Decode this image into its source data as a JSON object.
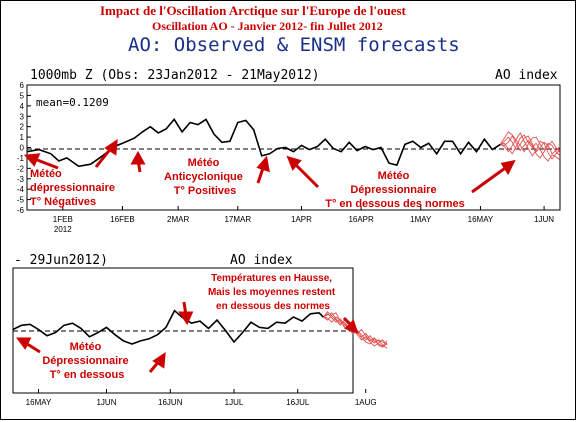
{
  "titles": {
    "line1": "Impact de l'Oscillation Arctique sur l'Europe de l'ouest",
    "line2": "Oscillation AO - Janvier 2012- fin Jullet 2012",
    "line3": "AO: Observed & ENSM forecasts"
  },
  "chart_data": [
    {
      "type": "line",
      "header_left": "1000mb Z (Obs: 23Jan2012 - 21May2012)",
      "header_right": "AO index",
      "mean_label": "mean=0.1209",
      "ylim": [
        -6,
        6
      ],
      "yticks": [
        6,
        5,
        4,
        3,
        2,
        1,
        0,
        -1,
        -2,
        -3,
        -4,
        -5,
        -6
      ],
      "xlim": [
        0,
        134
      ],
      "xticks": [
        {
          "x": 9,
          "label": "1FEB",
          "sub": "2012"
        },
        {
          "x": 24,
          "label": "16FEB"
        },
        {
          "x": 38,
          "label": "2MAR"
        },
        {
          "x": 53,
          "label": "17MAR"
        },
        {
          "x": 69,
          "label": "1APR"
        },
        {
          "x": 84,
          "label": "16APR"
        },
        {
          "x": 99,
          "label": "1MAY"
        },
        {
          "x": 114,
          "label": "16MAY"
        },
        {
          "x": 130,
          "label": "1JUN"
        }
      ],
      "observed": {
        "x": [
          0,
          3,
          6,
          8,
          10,
          13,
          16,
          19,
          22,
          24,
          27,
          29,
          31,
          33,
          35,
          37,
          39,
          41,
          43,
          45,
          47,
          49,
          51,
          53,
          55,
          57,
          59,
          61,
          63,
          65,
          67,
          69,
          71,
          73,
          75,
          77,
          79,
          81,
          83,
          85,
          87,
          89,
          91,
          93,
          95,
          97,
          99,
          101,
          103,
          105,
          107,
          109,
          111,
          113,
          115,
          117,
          119
        ],
        "y": [
          -0.4,
          -0.2,
          -0.6,
          -1.3,
          -1.0,
          -1.8,
          -1.6,
          -0.8,
          0.1,
          0.4,
          0.9,
          1.5,
          2.0,
          1.4,
          1.8,
          2.7,
          1.5,
          2.4,
          2.2,
          2.7,
          1.3,
          0.5,
          0.6,
          2.4,
          2.6,
          1.7,
          -0.8,
          -0.6,
          -0.1,
          0.0,
          -0.4,
          0.2,
          -0.2,
          0.1,
          0.8,
          -0.1,
          -0.4,
          0.5,
          -0.3,
          0.1,
          -0.2,
          0.0,
          -1.5,
          -1.7,
          0.3,
          0.6,
          0.0,
          0.4,
          -0.6,
          0.6,
          0.6,
          -0.6,
          0.5,
          -0.4,
          0.8,
          -0.2,
          0.3
        ]
      },
      "forecast_x": [
        119,
        120,
        121,
        122,
        123,
        124,
        125,
        126,
        127,
        128,
        129,
        130,
        131,
        132,
        133,
        134
      ],
      "forecasts": [
        [
          0.3,
          0.6,
          1.0,
          0.5,
          -0.2,
          0.3,
          0.9,
          1.1,
          0.4,
          -0.4,
          0.0,
          0.5,
          0.2,
          -0.6,
          -0.3,
          0.1
        ],
        [
          0.3,
          0.1,
          -0.4,
          0.2,
          0.8,
          1.4,
          0.6,
          -0.1,
          -0.8,
          -0.3,
          0.6,
          0.4,
          -0.5,
          -1.1,
          -0.6,
          -0.2
        ],
        [
          0.3,
          0.9,
          1.5,
          1.2,
          0.7,
          0.2,
          -0.4,
          0.3,
          0.9,
          1.0,
          0.3,
          -0.2,
          0.4,
          0.2,
          -0.4,
          -0.8
        ],
        [
          0.3,
          0.2,
          0.5,
          1.1,
          0.4,
          -0.3,
          0.2,
          0.7,
          0.2,
          -0.6,
          -1.0,
          -0.4,
          0.2,
          0.6,
          0.0,
          -0.5
        ],
        [
          0.3,
          0.4,
          -0.1,
          -0.6,
          0.1,
          0.9,
          1.2,
          0.5,
          0.0,
          0.4,
          -0.2,
          -0.9,
          -1.3,
          -0.7,
          -0.9,
          -1.2
        ]
      ],
      "annotations": [
        {
          "lines": [
            "Météo",
            "dépressionnaire",
            "T° Négatives"
          ]
        },
        {
          "lines": [
            "Météo",
            "Anticyclonique",
            "T° Positives"
          ]
        },
        {
          "lines": [
            "Météo",
            "Dépressionnaire",
            "T° en dessous des normes"
          ]
        }
      ]
    },
    {
      "type": "line",
      "header_left": "- 29Jun2012)",
      "header_right": "AO index",
      "ylim": [
        -6,
        6
      ],
      "xlim": [
        0,
        80
      ],
      "xticks": [
        {
          "x": 6,
          "label": "16MAY"
        },
        {
          "x": 22,
          "label": "1JUN"
        },
        {
          "x": 37,
          "label": "16JUN"
        },
        {
          "x": 52,
          "label": "1JUL"
        },
        {
          "x": 67,
          "label": "16JUL"
        },
        {
          "x": 83,
          "label": "1AUG"
        }
      ],
      "observed": {
        "x": [
          0,
          2,
          4,
          6,
          8,
          10,
          12,
          14,
          16,
          18,
          20,
          22,
          24,
          26,
          28,
          30,
          32,
          34,
          36,
          38,
          40,
          42,
          44,
          46,
          48,
          50,
          52,
          54,
          56,
          58,
          60,
          62,
          64,
          66,
          68,
          70,
          72,
          73
        ],
        "y": [
          0.1,
          0.5,
          0.6,
          0.1,
          -0.5,
          -0.2,
          0.5,
          0.7,
          0.2,
          -0.6,
          -0.2,
          0.3,
          -0.4,
          -1.0,
          -1.3,
          -1.0,
          -0.8,
          -0.4,
          0.3,
          1.9,
          1.2,
          0.7,
          0.9,
          0.2,
          1.0,
          0.0,
          -1.1,
          -0.2,
          0.8,
          0.3,
          0.2,
          0.8,
          0.7,
          1.3,
          0.9,
          1.6,
          1.7,
          1.3
        ]
      },
      "forecast_x": [
        73,
        74,
        75,
        76,
        77,
        78,
        79,
        80,
        81,
        82,
        83,
        84,
        85,
        86,
        87,
        88
      ],
      "forecasts": [
        [
          1.3,
          1.6,
          1.2,
          0.8,
          1.1,
          0.6,
          0.2,
          0.5,
          -0.2,
          -0.6,
          -0.3,
          -0.8,
          -1.2,
          -0.9,
          -1.1,
          -1.3
        ],
        [
          1.3,
          1.0,
          1.5,
          1.7,
          0.9,
          0.4,
          0.8,
          0.2,
          -0.3,
          0.1,
          -0.5,
          -1.0,
          -0.7,
          -1.4,
          -1.6,
          -1.2
        ],
        [
          1.3,
          1.8,
          1.4,
          1.0,
          0.5,
          1.0,
          0.6,
          0.0,
          -0.4,
          -0.9,
          -0.6,
          -1.1,
          -1.5,
          -1.2,
          -0.9,
          -1.4
        ],
        [
          1.3,
          1.2,
          0.8,
          1.3,
          1.0,
          0.3,
          0.0,
          0.4,
          0.0,
          -0.4,
          -0.9,
          -0.5,
          -1.0,
          -1.3,
          -1.5,
          -1.0
        ],
        [
          1.3,
          1.5,
          1.7,
          1.1,
          0.7,
          0.8,
          0.1,
          -0.3,
          -0.1,
          -0.7,
          -1.1,
          -1.3,
          -0.8,
          -1.0,
          -1.4,
          -1.7
        ]
      ],
      "annotations": [
        {
          "lines": [
            "Températures en Hausse,",
            "Mais les moyennes restent",
            "en dessous des normes"
          ]
        },
        {
          "lines": [
            "Météo",
            "Dépressionnaire",
            "T° en dessous"
          ]
        }
      ]
    }
  ],
  "colors": {
    "title_red": "#cc0000",
    "title_blue": "#1a2f8a",
    "ensemble": "#e05050",
    "annotation": "#cc0000"
  }
}
